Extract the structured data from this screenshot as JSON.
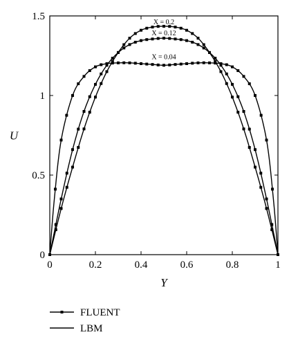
{
  "chart_data": {
    "type": "line",
    "xlabel": "Y",
    "ylabel": "U",
    "xlim": [
      0,
      1
    ],
    "ylim": [
      0,
      1.5
    ],
    "xticks": [
      "0",
      "0.2",
      "0.4",
      "0.6",
      "0.8",
      "1"
    ],
    "yticks": [
      "0",
      "0.5",
      "1",
      "1.5"
    ],
    "grid": false,
    "legend_position": "bottom-left",
    "legend": [
      {
        "label": "FLUENT",
        "style": "line-with-square-markers"
      },
      {
        "label": "LBM",
        "style": "solid-line"
      }
    ],
    "annotations": [
      {
        "text": "X = 0.2",
        "x": 0.5,
        "y": 1.43
      },
      {
        "text": "X = 0.12",
        "x": 0.5,
        "y": 1.36
      },
      {
        "text": "X = 0.04",
        "x": 0.5,
        "y": 1.21
      }
    ],
    "series": [
      {
        "name": "X = 0.04",
        "x": [
          0,
          0.02,
          0.05,
          0.1,
          0.15,
          0.2,
          0.25,
          0.3,
          0.35,
          0.4,
          0.45,
          0.5,
          0.55,
          0.6,
          0.65,
          0.7,
          0.75,
          0.8,
          0.85,
          0.9,
          0.95,
          0.98,
          1
        ],
        "y": [
          0,
          0.35,
          0.72,
          1.0,
          1.12,
          1.18,
          1.2,
          1.205,
          1.205,
          1.2,
          1.195,
          1.19,
          1.195,
          1.2,
          1.205,
          1.205,
          1.2,
          1.18,
          1.12,
          1.0,
          0.72,
          0.35,
          0
        ]
      },
      {
        "name": "X = 0.12",
        "x": [
          0,
          0.05,
          0.1,
          0.15,
          0.2,
          0.25,
          0.3,
          0.35,
          0.4,
          0.45,
          0.5,
          0.55,
          0.6,
          0.65,
          0.7,
          0.75,
          0.8,
          0.85,
          0.9,
          0.95,
          1
        ],
        "y": [
          0,
          0.35,
          0.66,
          0.9,
          1.07,
          1.19,
          1.27,
          1.32,
          1.345,
          1.355,
          1.36,
          1.355,
          1.345,
          1.32,
          1.27,
          1.19,
          1.07,
          0.9,
          0.66,
          0.35,
          0
        ]
      },
      {
        "name": "X = 0.2",
        "x": [
          0,
          0.05,
          0.1,
          0.15,
          0.2,
          0.25,
          0.3,
          0.35,
          0.4,
          0.45,
          0.5,
          0.55,
          0.6,
          0.65,
          0.7,
          0.75,
          0.8,
          0.85,
          0.9,
          0.95,
          1
        ],
        "y": [
          0,
          0.29,
          0.55,
          0.79,
          0.99,
          1.15,
          1.27,
          1.36,
          1.41,
          1.43,
          1.435,
          1.43,
          1.41,
          1.36,
          1.27,
          1.15,
          0.99,
          0.79,
          0.55,
          0.29,
          0
        ]
      }
    ]
  }
}
